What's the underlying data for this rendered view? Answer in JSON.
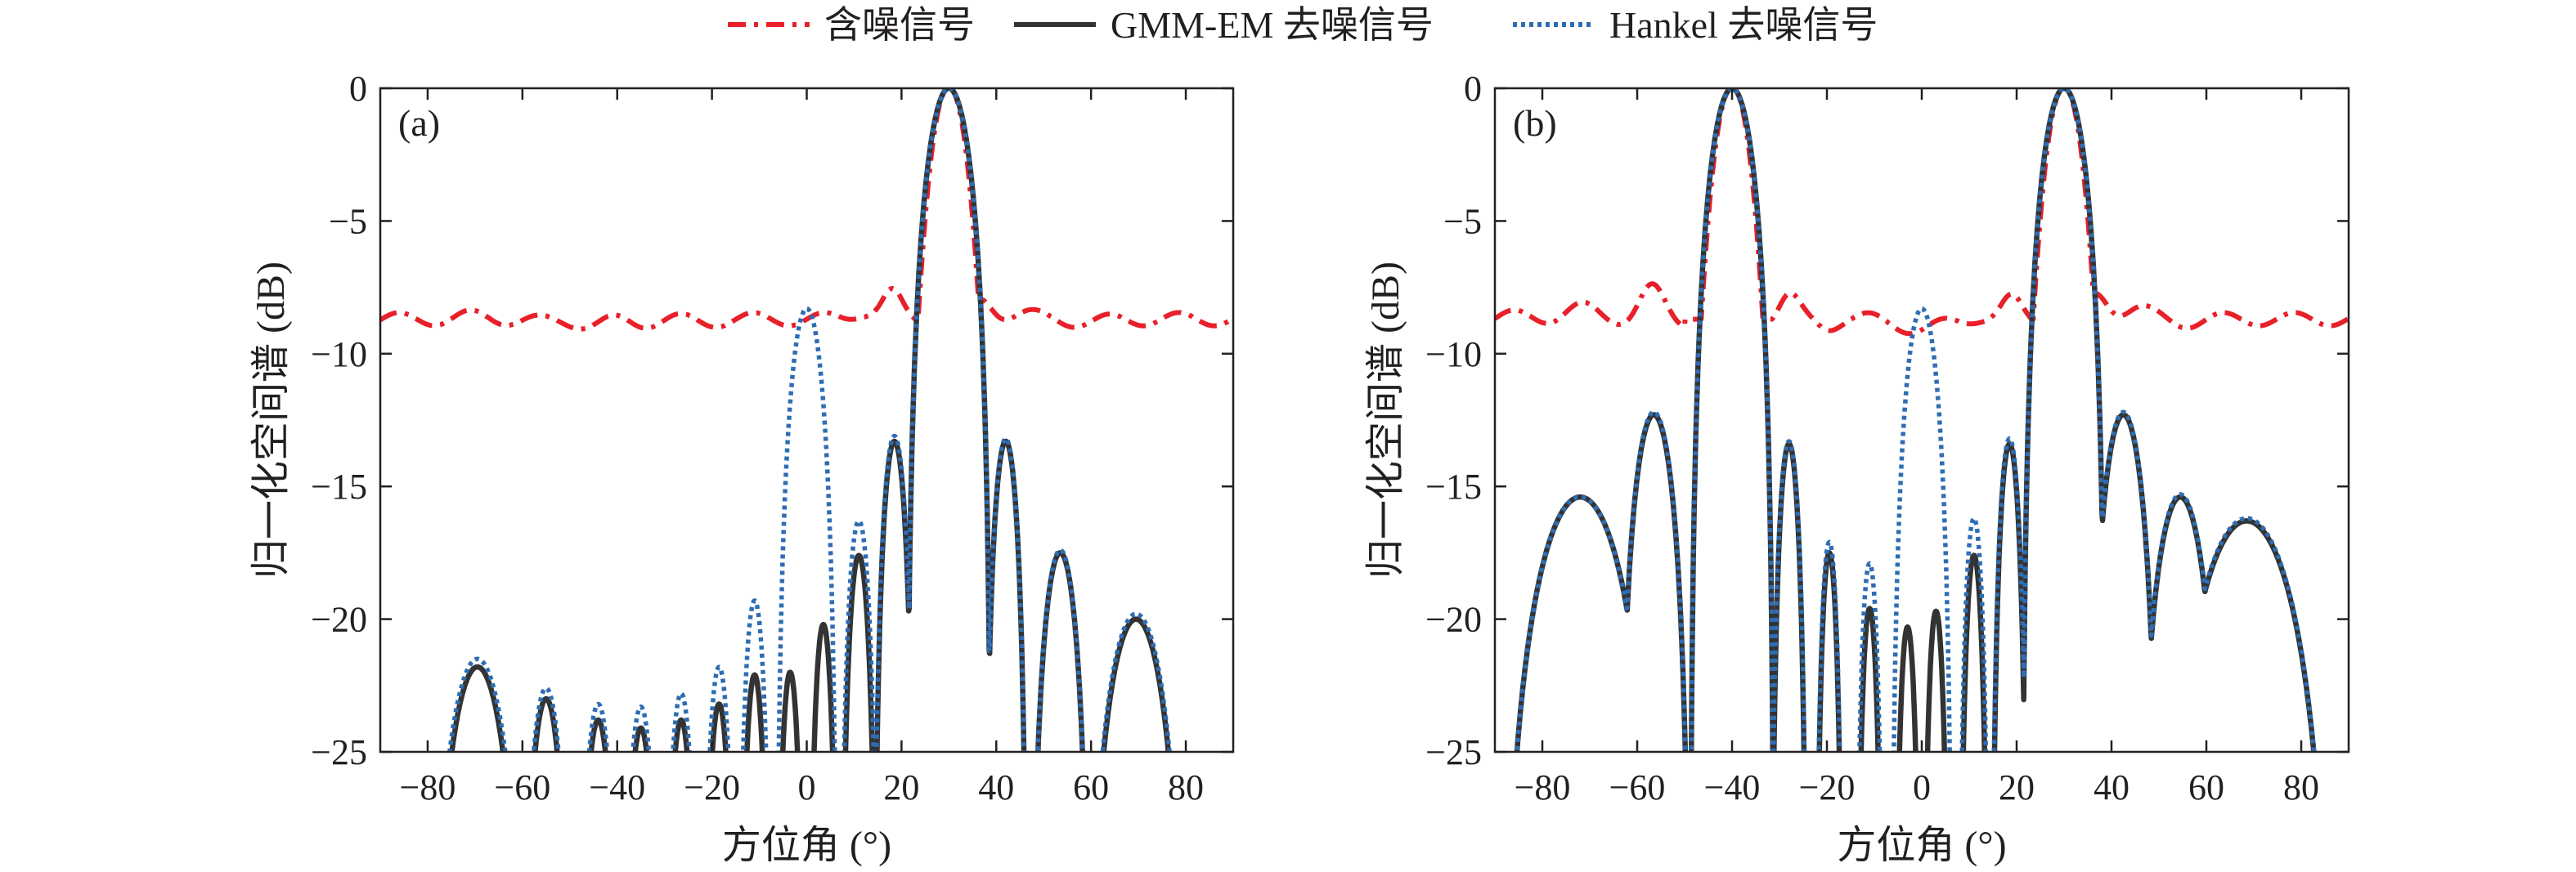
{
  "legend": {
    "items": [
      {
        "label": "含噪信号",
        "color": "#e8202a",
        "style": "dashdot"
      },
      {
        "label": "GMM-EM 去噪信号",
        "color": "#333333",
        "style": "solid"
      },
      {
        "label": "Hankel 去噪信号",
        "color": "#2e6db4",
        "style": "dotted"
      }
    ]
  },
  "chart_data": [
    {
      "type": "line",
      "panel_label": "(a)",
      "xlabel": "方位角 (°)",
      "ylabel": "归一化空间谱 (dB)",
      "xlim": [
        -90,
        90
      ],
      "ylim": [
        -25,
        0
      ],
      "xticks": [
        -80,
        -60,
        -40,
        -20,
        0,
        20,
        40,
        60,
        80
      ],
      "yticks": [
        0,
        -5,
        -10,
        -15,
        -20,
        -25
      ],
      "xtick_labels": [
        "−80",
        "−60",
        "−40",
        "−20",
        "0",
        "20",
        "40",
        "60",
        "80"
      ],
      "ytick_labels": [
        "0",
        "−5",
        "−10",
        "−15",
        "−20",
        "−25"
      ],
      "noisy_baseline": -8.7,
      "noisy_peaks": [
        [
          30,
          0
        ]
      ],
      "series": [
        {
          "name": "含噪信号",
          "lobes": [
            [
              -70,
              -8.6,
              7
            ],
            [
              -55,
              -8.8,
              6
            ],
            [
              -45,
              -8.9,
              6
            ],
            [
              -35,
              -8.8,
              6
            ],
            [
              -22,
              -8.8,
              6
            ],
            [
              -10,
              -8.7,
              6
            ],
            [
              12,
              -8.4,
              5
            ],
            [
              18,
              -7.8,
              4
            ],
            [
              37,
              -8.0,
              5
            ],
            [
              45,
              -8.5,
              6
            ],
            [
              60,
              -8.8,
              7
            ],
            [
              75,
              -8.7,
              7
            ]
          ]
        },
        {
          "name": "GMM-EM 去噪信号",
          "lobes": [
            [
              -69.5,
              -21.8,
              10.5
            ],
            [
              -55,
              -23.0,
              5.6
            ],
            [
              -44,
              -23.8,
              4.6
            ],
            [
              -35,
              -24.1,
              4.2
            ],
            [
              -26.5,
              -23.8,
              3.8
            ],
            [
              -18.5,
              -23.2,
              3.6
            ],
            [
              -11,
              -22.1,
              3.3
            ],
            [
              -3.5,
              -22.0,
              3.1
            ],
            [
              3.5,
              -20.2,
              3.2
            ],
            [
              11,
              -17.6,
              3.9
            ],
            [
              18.5,
              -13.3,
              4.4
            ],
            [
              30,
              0,
              9.0
            ],
            [
              42,
              -13.3,
              4.6
            ],
            [
              53.5,
              -17.5,
              6.5
            ],
            [
              69.5,
              -20.0,
              11.0
            ]
          ]
        },
        {
          "name": "Hankel 去噪信号",
          "lobes": [
            [
              -69.5,
              -21.5,
              11.0
            ],
            [
              -55,
              -22.6,
              5.8
            ],
            [
              -44,
              -23.2,
              4.8
            ],
            [
              -35,
              -23.3,
              4.4
            ],
            [
              -26.5,
              -22.8,
              4.0
            ],
            [
              -18.5,
              -21.8,
              3.8
            ],
            [
              -11,
              -19.3,
              3.7
            ],
            [
              0,
              -8.3,
              6.5
            ],
            [
              11,
              -16.3,
              4.1
            ],
            [
              18.5,
              -13.1,
              4.5
            ],
            [
              30,
              0,
              9.0
            ],
            [
              42,
              -13.2,
              4.6
            ],
            [
              53.5,
              -17.4,
              6.5
            ],
            [
              69.5,
              -19.8,
              11.2
            ]
          ]
        }
      ]
    },
    {
      "type": "line",
      "panel_label": "(b)",
      "xlabel": "方位角 (°)",
      "ylabel": "归一化空间谱 (dB)",
      "xlim": [
        -90,
        90
      ],
      "ylim": [
        -25,
        0
      ],
      "xticks": [
        -80,
        -60,
        -40,
        -20,
        0,
        20,
        40,
        60,
        80
      ],
      "yticks": [
        0,
        -5,
        -10,
        -15,
        -20,
        -25
      ],
      "xtick_labels": [
        "−80",
        "−60",
        "−40",
        "−20",
        "0",
        "20",
        "40",
        "60",
        "80"
      ],
      "ytick_labels": [
        "0",
        "−5",
        "−10",
        "−15",
        "−20",
        "−25"
      ],
      "noisy_baseline": -8.7,
      "noisy_peaks": [
        [
          -40,
          0
        ],
        [
          30,
          0
        ]
      ],
      "series": [
        {
          "name": "含噪信号",
          "lobes": [
            [
              -85,
              -8.6,
              8
            ],
            [
              -72,
              -8.3,
              7
            ],
            [
              -57,
              -7.6,
              5
            ],
            [
              -51,
              -8.8,
              4
            ],
            [
              -28,
              -7.9,
              4
            ],
            [
              -20,
              -8.9,
              4
            ],
            [
              -12,
              -8.7,
              4
            ],
            [
              0,
              -9.1,
              8
            ],
            [
              12,
              -8.6,
              4
            ],
            [
              19,
              -8.0,
              4
            ],
            [
              37,
              -7.8,
              5
            ],
            [
              45,
              -8.3,
              6
            ],
            [
              55,
              -8.8,
              6
            ],
            [
              70,
              -8.7,
              8
            ],
            [
              85,
              -8.7,
              8
            ]
          ]
        },
        {
          "name": "GMM-EM 去噪信号",
          "lobes": [
            [
              -72,
              -15.4,
              17.0
            ],
            [
              -56.5,
              -12.3,
              7.8
            ],
            [
              -40,
              0,
              8.9
            ],
            [
              -28,
              -13.4,
              3.8
            ],
            [
              -19.5,
              -17.5,
              2.9
            ],
            [
              -11,
              -19.6,
              2.8
            ],
            [
              -3,
              -20.3,
              2.8
            ],
            [
              3,
              -19.7,
              2.8
            ],
            [
              11,
              -17.6,
              3.1
            ],
            [
              18.5,
              -13.4,
              3.8
            ],
            [
              30,
              0,
              8.9
            ],
            [
              42.5,
              -12.3,
              7.8
            ],
            [
              54.5,
              -15.4,
              9.6
            ],
            [
              68.5,
              -16.3,
              18.6
            ]
          ]
        },
        {
          "name": "Hankel 去噪信号",
          "lobes": [
            [
              -72,
              -15.4,
              17.0
            ],
            [
              -56.5,
              -12.2,
              7.8
            ],
            [
              -40,
              0,
              8.9
            ],
            [
              -28,
              -13.3,
              3.9
            ],
            [
              -19.5,
              -17.1,
              3.0
            ],
            [
              -11,
              -17.9,
              3.0
            ],
            [
              0,
              -8.3,
              6.5
            ],
            [
              11,
              -16.2,
              3.3
            ],
            [
              18.5,
              -13.2,
              3.9
            ],
            [
              30,
              0,
              8.9
            ],
            [
              42.5,
              -12.2,
              7.8
            ],
            [
              54.5,
              -15.3,
              9.6
            ],
            [
              68.5,
              -16.2,
              18.6
            ]
          ]
        }
      ]
    }
  ]
}
